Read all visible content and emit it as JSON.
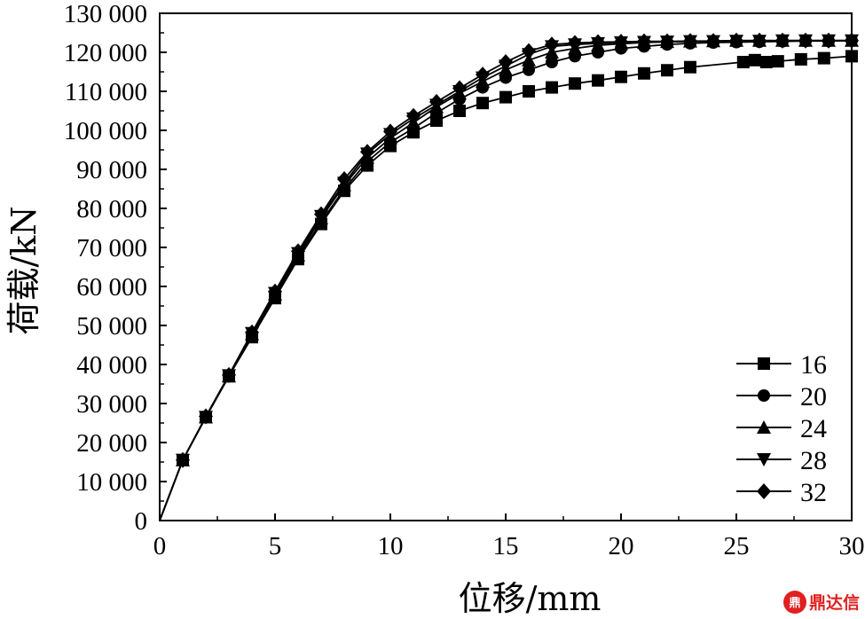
{
  "chart_data": {
    "type": "line",
    "title": "",
    "xlabel": "位移/mm",
    "ylabel": "荷载/kN",
    "xlim": [
      0,
      30
    ],
    "ylim": [
      0,
      130000
    ],
    "xticks": [
      0,
      5,
      10,
      15,
      20,
      25,
      30
    ],
    "xtick_labels": [
      "0",
      "5",
      "10",
      "15",
      "20",
      "25",
      "30"
    ],
    "yticks": [
      0,
      10000,
      20000,
      30000,
      40000,
      50000,
      60000,
      70000,
      80000,
      90000,
      100000,
      110000,
      120000,
      130000
    ],
    "ytick_labels": [
      "0",
      "10 000",
      "20 000",
      "30 000",
      "40 000",
      "50 000",
      "60 000",
      "70 000",
      "80 000",
      "90 000",
      "100 000",
      "110 000",
      "120 000",
      "130 000"
    ],
    "grid": false,
    "legend_position": "bottom-right",
    "series": [
      {
        "name": "16",
        "marker": "square",
        "x": [
          0,
          1,
          2,
          3,
          4,
          5,
          6,
          7,
          8,
          9,
          10,
          11,
          12,
          13,
          14,
          15,
          16,
          17,
          18,
          19,
          20,
          21,
          22,
          23,
          25.3,
          25.8,
          26.3,
          26.8,
          27.8,
          28.8,
          30
        ],
        "y": [
          0,
          15500,
          26500,
          37000,
          47000,
          57000,
          67000,
          76000,
          84500,
          91000,
          96000,
          99500,
          102500,
          105000,
          107000,
          108500,
          110000,
          111000,
          112000,
          112800,
          113700,
          114600,
          115400,
          116200,
          117500,
          118000,
          117500,
          117700,
          118200,
          118500,
          119000
        ]
      },
      {
        "name": "20",
        "marker": "circle",
        "x": [
          0,
          1,
          2,
          3,
          4,
          5,
          6,
          7,
          8,
          9,
          10,
          11,
          12,
          13,
          14,
          15,
          16,
          17,
          18,
          19,
          20,
          21,
          22,
          23,
          24,
          25,
          26,
          27,
          28,
          29,
          30
        ],
        "y": [
          0,
          15500,
          26500,
          37000,
          47500,
          57500,
          67500,
          76500,
          85000,
          92000,
          97000,
          100500,
          104500,
          108000,
          111000,
          113500,
          115500,
          117500,
          119000,
          120000,
          121000,
          121500,
          122000,
          122300,
          122500,
          122600,
          122700,
          122800,
          122900,
          122900,
          123000
        ]
      },
      {
        "name": "24",
        "marker": "triangle-up",
        "x": [
          0,
          1,
          2,
          3,
          4,
          5,
          6,
          7,
          8,
          9,
          10,
          11,
          12,
          13,
          14,
          15,
          16,
          17,
          18,
          19,
          20,
          21,
          22,
          23,
          24,
          25,
          26,
          27,
          28,
          29,
          30
        ],
        "y": [
          0,
          15500,
          26500,
          37000,
          47800,
          58000,
          68000,
          77500,
          86000,
          93000,
          98000,
          102000,
          106000,
          109500,
          112500,
          115500,
          118000,
          120000,
          121000,
          121800,
          122200,
          122500,
          122700,
          122800,
          122900,
          123000,
          123000,
          123000,
          123000,
          123000,
          123000
        ]
      },
      {
        "name": "28",
        "marker": "triangle-down",
        "x": [
          0,
          1,
          2,
          3,
          4,
          5,
          6,
          7,
          8,
          9,
          10,
          11,
          12,
          13,
          14,
          15,
          16,
          17,
          18,
          19,
          20,
          21,
          22,
          23,
          24,
          25,
          26,
          27,
          28,
          29,
          30
        ],
        "y": [
          0,
          15500,
          26500,
          37200,
          48000,
          58300,
          68500,
          78000,
          86500,
          94000,
          99000,
          103000,
          106500,
          110000,
          113500,
          116500,
          119500,
          121500,
          122000,
          122300,
          122500,
          122600,
          122700,
          122800,
          122800,
          122900,
          122900,
          123000,
          123000,
          123000,
          123000
        ]
      },
      {
        "name": "32",
        "marker": "diamond",
        "x": [
          0,
          1,
          2,
          3,
          4,
          5,
          6,
          7,
          8,
          9,
          10,
          11,
          12,
          13,
          14,
          15,
          16,
          17,
          18,
          19,
          20,
          21,
          22,
          23,
          24,
          25,
          26,
          27,
          28,
          29,
          30
        ],
        "y": [
          0,
          15500,
          26700,
          37300,
          48200,
          58700,
          69000,
          78500,
          87500,
          94500,
          99700,
          103700,
          107300,
          110800,
          114300,
          117500,
          120300,
          122000,
          122400,
          122600,
          122700,
          122800,
          122800,
          122900,
          122900,
          123000,
          123000,
          123000,
          123000,
          123000,
          123000
        ]
      }
    ]
  },
  "watermark": {
    "logo": "鼎",
    "text": "鼎达信"
  }
}
